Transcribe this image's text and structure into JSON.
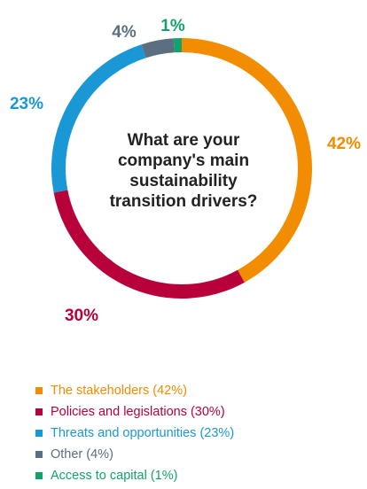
{
  "chart_data": {
    "type": "pie",
    "title": "What are your company's main sustainability transition drivers?",
    "donut": true,
    "legend_position": "bottom",
    "slices": [
      {
        "name": "The stakeholders (42%)",
        "value": 42,
        "label": "42%",
        "color": "#F28C00"
      },
      {
        "name": "Policies and legislations (30%)",
        "value": 30,
        "label": "30%",
        "color": "#B8003B"
      },
      {
        "name": "Threats and opportunities (23%)",
        "value": 23,
        "label": "23%",
        "color": "#1A98D5"
      },
      {
        "name": "Other (4%)",
        "value": 4,
        "label": "4%",
        "color": "#5B6F80"
      },
      {
        "name": "Access to capital (1%)",
        "value": 1,
        "label": "1%",
        "color": "#13A26B"
      }
    ]
  }
}
